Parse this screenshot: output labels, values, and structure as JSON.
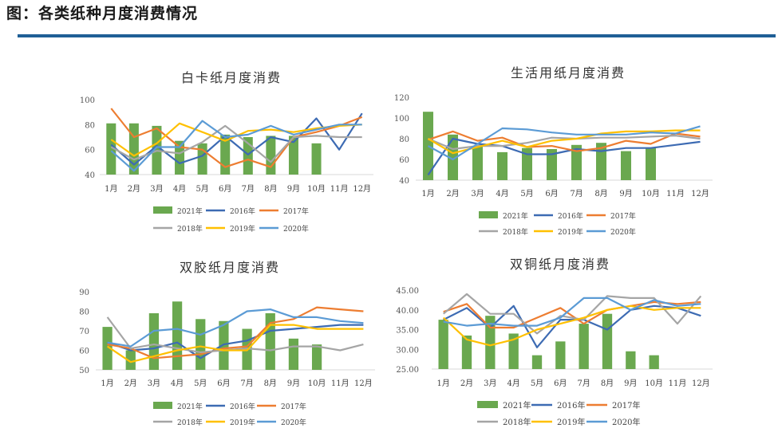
{
  "figure_title": "图：各类纸种月度消费情况",
  "colors": {
    "2021年": "#6aa84f",
    "2016年": "#3d6bb3",
    "2017年": "#ed7d31",
    "2018年": "#a5a5a5",
    "2019年": "#ffc000",
    "2020年": "#5b9bd5",
    "rule": "#1f5f96"
  },
  "chart_data": [
    {
      "type": "bar+line",
      "title": "白卡纸月度消费",
      "categories": [
        "1月",
        "2月",
        "3月",
        "4月",
        "5月",
        "6月",
        "7月",
        "8月",
        "9月",
        "10月",
        "11月",
        "12月"
      ],
      "ylim": [
        40,
        100
      ],
      "yticks": [
        "40",
        "60",
        "80",
        "100"
      ],
      "bar_series": {
        "name": "2021年",
        "values": [
          81,
          81,
          79,
          67,
          65,
          72,
          70,
          71,
          71,
          65,
          null,
          null
        ]
      },
      "line_series": [
        {
          "name": "2016年",
          "values": [
            64,
            48,
            63,
            49,
            55,
            71,
            56,
            70,
            66,
            85,
            60,
            89
          ]
        },
        {
          "name": "2017年",
          "values": [
            93,
            70,
            77,
            62,
            60,
            46,
            52,
            46,
            70,
            74,
            79,
            86
          ]
        },
        {
          "name": "2018年",
          "values": [
            62,
            52,
            59,
            57,
            66,
            79,
            65,
            50,
            70,
            71,
            70,
            70
          ]
        },
        {
          "name": "2019年",
          "values": [
            68,
            55,
            65,
            81,
            74,
            67,
            75,
            76,
            74,
            77,
            79,
            80
          ]
        },
        {
          "name": "2020年",
          "values": [
            59,
            43,
            62,
            62,
            83,
            70,
            72,
            79,
            72,
            76,
            80,
            80
          ]
        }
      ],
      "legend": [
        "2021年",
        "2016年",
        "2017年",
        "2018年",
        "2019年",
        "2020年"
      ]
    },
    {
      "type": "bar+line",
      "title": "生活用纸月度消费",
      "categories": [
        "1月",
        "2月",
        "3月",
        "4月",
        "5月",
        "6月",
        "7月",
        "8月",
        "9月",
        "10月",
        "11月",
        "12月"
      ],
      "ylim": [
        40,
        120
      ],
      "yticks": [
        "40",
        "60",
        "80",
        "100",
        "120"
      ],
      "bar_series": {
        "name": "2021年",
        "values": [
          106,
          84,
          73,
          67,
          71,
          70,
          74,
          76,
          68,
          71,
          null,
          null
        ]
      },
      "line_series": [
        {
          "name": "2016年",
          "values": [
            45,
            80,
            75,
            73,
            65,
            65,
            70,
            68,
            71,
            71,
            74,
            77
          ]
        },
        {
          "name": "2017年",
          "values": [
            79,
            87,
            78,
            81,
            72,
            73,
            68,
            71,
            78,
            75,
            85,
            82
          ]
        },
        {
          "name": "2018年",
          "values": [
            80,
            70,
            73,
            73,
            76,
            81,
            80,
            81,
            81,
            82,
            83,
            80
          ]
        },
        {
          "name": "2019年",
          "values": [
            80,
            66,
            72,
            78,
            72,
            78,
            80,
            85,
            87,
            87,
            88,
            88
          ]
        },
        {
          "name": "2020年",
          "values": [
            73,
            60,
            75,
            90,
            89,
            86,
            84,
            84,
            84,
            86,
            85,
            92
          ]
        }
      ],
      "legend": [
        "2021年",
        "2016年",
        "2017年",
        "2018年",
        "2019年",
        "2020年"
      ]
    },
    {
      "type": "bar+line",
      "title": "双胶纸月度消费",
      "categories": [
        "1月",
        "2月",
        "3月",
        "4月",
        "5月",
        "6月",
        "7月",
        "8月",
        "9月",
        "10月",
        "11月",
        "12月"
      ],
      "ylim": [
        50,
        90
      ],
      "yticks": [
        "50",
        "60",
        "70",
        "80",
        "90"
      ],
      "bar_series": {
        "name": "2021年",
        "values": [
          72,
          60,
          79,
          85,
          76,
          75,
          71,
          79,
          66,
          63,
          null,
          null
        ]
      },
      "line_series": [
        {
          "name": "2016年",
          "values": [
            64,
            60,
            61,
            64,
            56,
            63,
            65,
            70,
            71,
            72,
            73,
            73
          ]
        },
        {
          "name": "2017年",
          "values": [
            63,
            61,
            56,
            57,
            58,
            61,
            62,
            74,
            76,
            82,
            81,
            80
          ]
        },
        {
          "name": "2018年",
          "values": [
            77,
            61,
            63,
            61,
            59,
            60,
            61,
            60,
            62,
            62,
            60,
            63
          ]
        },
        {
          "name": "2019年",
          "values": [
            62,
            54,
            57,
            60,
            62,
            60,
            60,
            73,
            73,
            71,
            71,
            71
          ]
        },
        {
          "name": "2020年",
          "values": [
            64,
            62,
            70,
            71,
            68,
            73,
            80,
            81,
            77,
            77,
            75,
            74
          ]
        }
      ],
      "legend": [
        "2021年",
        "2016年",
        "2017年",
        "2018年",
        "2019年",
        "2020年"
      ]
    },
    {
      "type": "bar+line",
      "title": "双铜纸月度消费",
      "categories": [
        "1月",
        "2月",
        "3月",
        "4月",
        "5月",
        "6月",
        "7月",
        "8月",
        "9月",
        "10月",
        "11月",
        "12月"
      ],
      "ylim": [
        25,
        45
      ],
      "yticks": [
        "25.00",
        "30.00",
        "35.00",
        "40.00",
        "45.00"
      ],
      "bar_series": {
        "name": "2021年",
        "values": [
          37.5,
          33.5,
          38.5,
          34.0,
          28.5,
          32.0,
          36.5,
          39.0,
          29.5,
          28.5,
          null,
          null
        ]
      },
      "line_series": [
        {
          "name": "2016年",
          "values": [
            37.5,
            40.5,
            35.5,
            41.0,
            30.5,
            37.5,
            37.5,
            35.0,
            40.0,
            41.0,
            40.5,
            38.5
          ]
        },
        {
          "name": "2017年",
          "values": [
            39.5,
            41.5,
            35.5,
            35.5,
            38.0,
            40.5,
            36.5,
            40.0,
            41.0,
            42.0,
            41.5,
            42.0
          ]
        },
        {
          "name": "2018年",
          "values": [
            39.0,
            44.0,
            39.0,
            39.0,
            34.0,
            38.5,
            37.5,
            43.5,
            43.0,
            43.0,
            36.5,
            43.5
          ]
        },
        {
          "name": "2019年",
          "values": [
            38.0,
            32.5,
            31.0,
            32.5,
            35.0,
            36.5,
            38.0,
            40.0,
            41.0,
            40.0,
            40.5,
            40.5
          ]
        },
        {
          "name": "2020年",
          "values": [
            37.0,
            36.0,
            36.5,
            36.0,
            36.0,
            38.0,
            43.0,
            43.0,
            40.0,
            42.5,
            41.0,
            41.5
          ]
        }
      ],
      "legend": [
        "2021年",
        "2016年",
        "2017年",
        "2018年",
        "2019年",
        "2020年"
      ]
    }
  ]
}
